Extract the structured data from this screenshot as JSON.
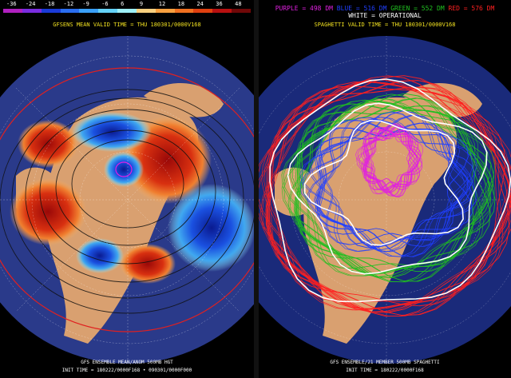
{
  "left_panel": {
    "scale_values": [
      "-36",
      "-24",
      "-18",
      "-12",
      "-9",
      "-6",
      "6",
      "9",
      "12",
      "18",
      "24",
      "36",
      "48"
    ],
    "scale_colors": [
      "#b020c0",
      "#7a2de0",
      "#1a3bd8",
      "#2a6ef0",
      "#3aa0f8",
      "#64d2f8",
      "#9ef0f8",
      "#f8d080",
      "#f8a040",
      "#f07020",
      "#e04010",
      "#b81010",
      "#700808"
    ],
    "valid_line": "GFSENS MEAN VALID TIME = THU 180301/0000V168",
    "footer_line1": "GFS ENSEMBLE MEAN/ANOM 500MB HGT",
    "footer_line2": "INIT TIME = 180222/0000F168 • 090301/0000F000"
  },
  "right_panel": {
    "legend": {
      "purple": "PURPLE = 498 DM",
      "blue": "BLUE = 516 DM",
      "green": "GREEN = 552 DM",
      "red": "RED = 576 DM",
      "white": "WHITE = OPERATIONAL"
    },
    "valid_line": "SPAGHETTI VALID TIME = THU 180301/0000V168",
    "footer_line1": "GFS ENSEMBLE/21 MEMBER 500MB SPAGHETTI",
    "footer_line2": "INIT TIME = 180222/0000F168"
  },
  "colors": {
    "legend_purple": "#e020e0",
    "legend_blue": "#2040ff",
    "legend_green": "#20c020",
    "legend_red": "#ff2020",
    "legend_white": "#ffffff",
    "valid_text": "#f0e020",
    "map_ocean": "#1a2a7a",
    "map_land": "#d9a070"
  }
}
